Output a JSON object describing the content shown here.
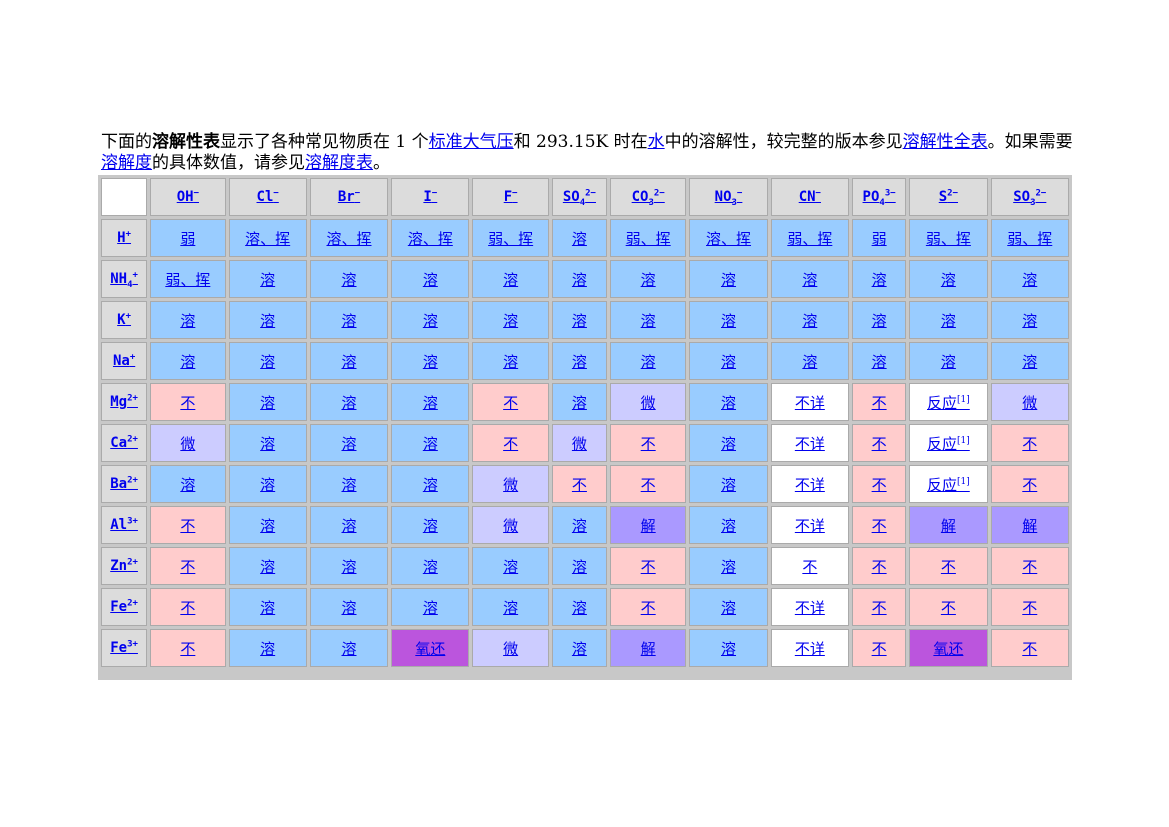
{
  "intro": {
    "t1": "下面的",
    "bold": "溶解性表",
    "t2": "显示了各种常见物质在 1 个",
    "link1": "标准大气压",
    "t3": "和 293.15K 时在",
    "link2": "水",
    "t4": "中的溶解性，较完整的版本参见",
    "link3": "溶解性全表",
    "t5": "。如果需要",
    "link4": "溶解度",
    "t6": "的具体数值，请参见",
    "link5": "溶解度表",
    "t7": "。"
  },
  "anions": [
    {
      "base": "OH",
      "sup": "−",
      "sub": ""
    },
    {
      "base": "Cl",
      "sup": "−",
      "sub": ""
    },
    {
      "base": "Br",
      "sup": "−",
      "sub": ""
    },
    {
      "base": "I",
      "sup": "−",
      "sub": ""
    },
    {
      "base": "F",
      "sup": "−",
      "sub": ""
    },
    {
      "base": "SO",
      "sub": "4",
      "sup": "2−"
    },
    {
      "base": "CO",
      "sub": "3",
      "sup": "2−"
    },
    {
      "base": "NO",
      "sub": "3",
      "sup": "−"
    },
    {
      "base": "CN",
      "sup": "−",
      "sub": ""
    },
    {
      "base": "PO",
      "sub": "4",
      "sup": "3−"
    },
    {
      "base": "S",
      "sup": "2−",
      "sub": ""
    },
    {
      "base": "SO",
      "sub": "3",
      "sup": "2−"
    }
  ],
  "rows": [
    {
      "cation": {
        "base": "H",
        "sub": "",
        "sup": "+"
      },
      "cells": [
        [
          "弱",
          "ruo"
        ],
        [
          "溶、挥",
          "rong"
        ],
        [
          "溶、挥",
          "rong"
        ],
        [
          "溶、挥",
          "rong"
        ],
        [
          "弱、挥",
          "rong"
        ],
        [
          "溶",
          "rong"
        ],
        [
          "弱、挥",
          "rong"
        ],
        [
          "溶、挥",
          "rong"
        ],
        [
          "弱、挥",
          "rong"
        ],
        [
          "弱",
          "rong"
        ],
        [
          "弱、挥",
          "rong"
        ],
        [
          "弱、挥",
          "rong"
        ]
      ]
    },
    {
      "cation": {
        "base": "NH",
        "sub": "4",
        "sup": "+"
      },
      "cells": [
        [
          "弱、挥",
          "rong"
        ],
        [
          "溶",
          "rong"
        ],
        [
          "溶",
          "rong"
        ],
        [
          "溶",
          "rong"
        ],
        [
          "溶",
          "rong"
        ],
        [
          "溶",
          "rong"
        ],
        [
          "溶",
          "rong"
        ],
        [
          "溶",
          "rong"
        ],
        [
          "溶",
          "rong"
        ],
        [
          "溶",
          "rong"
        ],
        [
          "溶",
          "rong"
        ],
        [
          "溶",
          "rong"
        ]
      ]
    },
    {
      "cation": {
        "base": "K",
        "sub": "",
        "sup": "+"
      },
      "cells": [
        [
          "溶",
          "rong"
        ],
        [
          "溶",
          "rong"
        ],
        [
          "溶",
          "rong"
        ],
        [
          "溶",
          "rong"
        ],
        [
          "溶",
          "rong"
        ],
        [
          "溶",
          "rong"
        ],
        [
          "溶",
          "rong"
        ],
        [
          "溶",
          "rong"
        ],
        [
          "溶",
          "rong"
        ],
        [
          "溶",
          "rong"
        ],
        [
          "溶",
          "rong"
        ],
        [
          "溶",
          "rong"
        ]
      ]
    },
    {
      "cation": {
        "base": "Na",
        "sub": "",
        "sup": "+"
      },
      "cells": [
        [
          "溶",
          "rong"
        ],
        [
          "溶",
          "rong"
        ],
        [
          "溶",
          "rong"
        ],
        [
          "溶",
          "rong"
        ],
        [
          "溶",
          "rong"
        ],
        [
          "溶",
          "rong"
        ],
        [
          "溶",
          "rong"
        ],
        [
          "溶",
          "rong"
        ],
        [
          "溶",
          "rong"
        ],
        [
          "溶",
          "rong"
        ],
        [
          "溶",
          "rong"
        ],
        [
          "溶",
          "rong"
        ]
      ]
    },
    {
      "cation": {
        "base": "Mg",
        "sub": "",
        "sup": "2+"
      },
      "cells": [
        [
          "不",
          "bu"
        ],
        [
          "溶",
          "rong"
        ],
        [
          "溶",
          "rong"
        ],
        [
          "溶",
          "rong"
        ],
        [
          "不",
          "bu"
        ],
        [
          "溶",
          "rong"
        ],
        [
          "微",
          "wei"
        ],
        [
          "溶",
          "rong"
        ],
        [
          "不详",
          "white"
        ],
        [
          "不",
          "bu"
        ],
        [
          "反应[1]",
          "white"
        ],
        [
          "微",
          "wei"
        ]
      ]
    },
    {
      "cation": {
        "base": "Ca",
        "sub": "",
        "sup": "2+"
      },
      "cells": [
        [
          "微",
          "wei"
        ],
        [
          "溶",
          "rong"
        ],
        [
          "溶",
          "rong"
        ],
        [
          "溶",
          "rong"
        ],
        [
          "不",
          "bu"
        ],
        [
          "微",
          "wei"
        ],
        [
          "不",
          "bu"
        ],
        [
          "溶",
          "rong"
        ],
        [
          "不详",
          "white"
        ],
        [
          "不",
          "bu"
        ],
        [
          "反应[1]",
          "white"
        ],
        [
          "不",
          "bu"
        ]
      ]
    },
    {
      "cation": {
        "base": "Ba",
        "sub": "",
        "sup": "2+"
      },
      "cells": [
        [
          "溶",
          "rong"
        ],
        [
          "溶",
          "rong"
        ],
        [
          "溶",
          "rong"
        ],
        [
          "溶",
          "rong"
        ],
        [
          "微",
          "wei"
        ],
        [
          "不",
          "bu"
        ],
        [
          "不",
          "bu"
        ],
        [
          "溶",
          "rong"
        ],
        [
          "不详",
          "white"
        ],
        [
          "不",
          "bu"
        ],
        [
          "反应[1]",
          "white"
        ],
        [
          "不",
          "bu"
        ]
      ]
    },
    {
      "cation": {
        "base": "Al",
        "sub": "",
        "sup": "3+"
      },
      "cells": [
        [
          "不",
          "bu"
        ],
        [
          "溶",
          "rong"
        ],
        [
          "溶",
          "rong"
        ],
        [
          "溶",
          "rong"
        ],
        [
          "微",
          "wei"
        ],
        [
          "溶",
          "rong"
        ],
        [
          "解",
          "jie"
        ],
        [
          "溶",
          "rong"
        ],
        [
          "不详",
          "white"
        ],
        [
          "不",
          "bu"
        ],
        [
          "解",
          "jie"
        ],
        [
          "解",
          "jie"
        ]
      ]
    },
    {
      "cation": {
        "base": "Zn",
        "sub": "",
        "sup": "2+"
      },
      "cells": [
        [
          "不",
          "bu"
        ],
        [
          "溶",
          "rong"
        ],
        [
          "溶",
          "rong"
        ],
        [
          "溶",
          "rong"
        ],
        [
          "溶",
          "rong"
        ],
        [
          "溶",
          "rong"
        ],
        [
          "不",
          "bu"
        ],
        [
          "溶",
          "rong"
        ],
        [
          "不",
          "white"
        ],
        [
          "不",
          "bu"
        ],
        [
          "不",
          "bu"
        ],
        [
          "不",
          "bu"
        ]
      ]
    },
    {
      "cation": {
        "base": "Fe",
        "sub": "",
        "sup": "2+"
      },
      "cells": [
        [
          "不",
          "bu"
        ],
        [
          "溶",
          "rong"
        ],
        [
          "溶",
          "rong"
        ],
        [
          "溶",
          "rong"
        ],
        [
          "溶",
          "rong"
        ],
        [
          "溶",
          "rong"
        ],
        [
          "不",
          "bu"
        ],
        [
          "溶",
          "rong"
        ],
        [
          "不详",
          "white"
        ],
        [
          "不",
          "bu"
        ],
        [
          "不",
          "bu"
        ],
        [
          "不",
          "bu"
        ]
      ]
    },
    {
      "cation": {
        "base": "Fe",
        "sub": "",
        "sup": "3+"
      },
      "cells": [
        [
          "不",
          "bu"
        ],
        [
          "溶",
          "rong"
        ],
        [
          "溶",
          "rong"
        ],
        [
          "氧还",
          "yang"
        ],
        [
          "微",
          "wei"
        ],
        [
          "溶",
          "rong"
        ],
        [
          "解",
          "jie"
        ],
        [
          "溶",
          "rong"
        ],
        [
          "不详",
          "white"
        ],
        [
          "不",
          "bu"
        ],
        [
          "氧还",
          "yang"
        ],
        [
          "不",
          "bu"
        ]
      ]
    }
  ],
  "colors": {
    "rong": "#99ccff",
    "bu": "#ffcccc",
    "wei": "#ccccff",
    "jie": "#aa99ff",
    "yang": "#bb55dd",
    "white": "#ffffff",
    "header": "#dcdcdc"
  }
}
